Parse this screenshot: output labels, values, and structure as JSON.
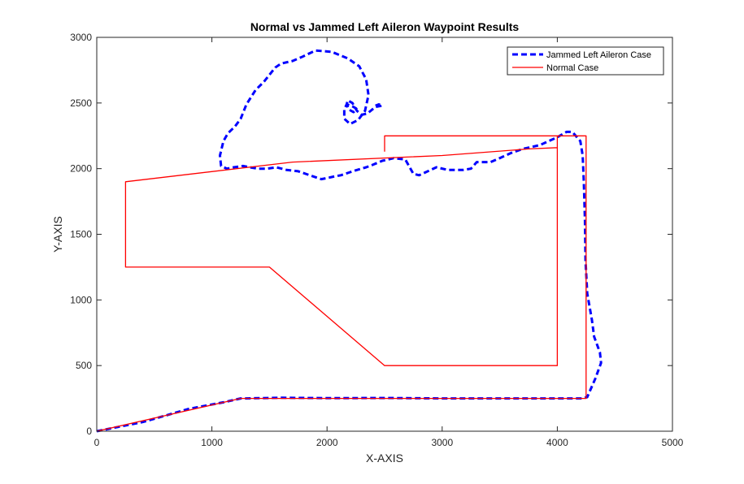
{
  "chart_data": {
    "type": "line",
    "title": "Normal vs Jammed Left Aileron Waypoint Results",
    "xlabel": "X-AXIS",
    "ylabel": "Y-AXIS",
    "xlim": [
      0,
      5000
    ],
    "ylim": [
      0,
      3000
    ],
    "xticks": [
      0,
      1000,
      2000,
      3000,
      4000,
      5000
    ],
    "yticks": [
      0,
      500,
      1000,
      1500,
      2000,
      2500,
      3000
    ],
    "grid": false,
    "legend_position": "top-right",
    "series": [
      {
        "name": "Jammed Left Aileron Case",
        "style": "dashed",
        "color": "#0000ff",
        "x": [
          0,
          400,
          800,
          1100,
          1250,
          1300,
          1600,
          2000,
          2500,
          3000,
          3500,
          4000,
          4220,
          4260,
          4330,
          4380,
          4370,
          4320,
          4300,
          4260,
          4245,
          4240,
          4230,
          4220,
          4200,
          4130,
          4080,
          4000,
          3850,
          3700,
          3600,
          3500,
          3420,
          3300,
          3250,
          3180,
          3050,
          2950,
          2850,
          2800,
          2750,
          2680,
          2580,
          2480,
          2400,
          2340,
          2260,
          2190,
          2120,
          2060,
          2010,
          1950,
          1850,
          1750,
          1650,
          1560,
          1480,
          1400,
          1330,
          1270,
          1190,
          1130,
          1080,
          1070,
          1100,
          1140,
          1200,
          1250,
          1300,
          1380,
          1450,
          1550,
          1600,
          1700,
          1780,
          1900,
          2040,
          2180,
          2280,
          2340,
          2360,
          2330,
          2270,
          2200,
          2150,
          2150,
          2170,
          2210,
          2250,
          2260,
          2230,
          2190,
          2170,
          2180,
          2220,
          2260,
          2300,
          2350,
          2420,
          2480,
          2450,
          2420
        ],
        "y": [
          0,
          70,
          170,
          220,
          250,
          250,
          255,
          252,
          253,
          250,
          250,
          250,
          250,
          260,
          400,
          520,
          600,
          720,
          850,
          1050,
          1300,
          1600,
          1900,
          2100,
          2210,
          2280,
          2280,
          2240,
          2180,
          2150,
          2120,
          2080,
          2050,
          2050,
          2000,
          1990,
          1990,
          2010,
          1970,
          1950,
          1960,
          2070,
          2080,
          2060,
          2030,
          2010,
          1990,
          1970,
          1950,
          1940,
          1930,
          1920,
          1950,
          1980,
          1990,
          2010,
          2000,
          2000,
          2010,
          2020,
          2010,
          2000,
          2020,
          2100,
          2210,
          2270,
          2320,
          2380,
          2490,
          2600,
          2660,
          2770,
          2800,
          2820,
          2850,
          2900,
          2890,
          2840,
          2780,
          2680,
          2560,
          2440,
          2370,
          2340,
          2380,
          2450,
          2490,
          2480,
          2460,
          2450,
          2430,
          2450,
          2490,
          2520,
          2500,
          2440,
          2410,
          2420,
          2470,
          2480,
          2490,
          2480
        ]
      },
      {
        "name": "Normal Case",
        "style": "solid",
        "color": "#ff0000",
        "x": [
          0,
          1250,
          1500,
          2000,
          2500,
          3000,
          3500,
          4000,
          4250,
          4250,
          4250,
          4000,
          4000,
          2500,
          1500,
          250,
          250,
          1700,
          3000,
          3750,
          4000,
          4000,
          2500,
          2500
        ],
        "y": [
          0,
          250,
          250,
          250,
          250,
          250,
          250,
          250,
          250,
          1500,
          2250,
          2250,
          500,
          500,
          1250,
          1250,
          1900,
          2050,
          2100,
          2150,
          2160,
          2250,
          2250,
          2130
        ]
      }
    ]
  }
}
